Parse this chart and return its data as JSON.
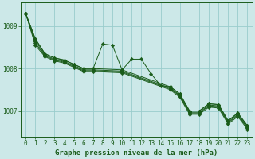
{
  "title": "Graphe pression niveau de la mer (hPa)",
  "bg_color": "#cce8e8",
  "grid_color": "#99cccc",
  "line_color": "#1a5c1a",
  "marker_color": "#1a5c1a",
  "xlim": [
    -0.5,
    23.5
  ],
  "ylim": [
    1006.4,
    1009.55
  ],
  "yticks": [
    1007,
    1008,
    1009
  ],
  "xticks": [
    0,
    1,
    2,
    3,
    4,
    5,
    6,
    7,
    8,
    9,
    10,
    11,
    12,
    13,
    14,
    15,
    16,
    17,
    18,
    19,
    20,
    21,
    22,
    23
  ],
  "fontsize_label": 6.5,
  "fontsize_tick": 5.5,
  "series_straight": [
    {
      "x": [
        0,
        1,
        2,
        3,
        4,
        5,
        6,
        7,
        10,
        15,
        16,
        17,
        18,
        19,
        20,
        21,
        22,
        23
      ],
      "y": [
        1009.3,
        1008.7,
        1008.35,
        1008.25,
        1008.2,
        1008.1,
        1008.0,
        1008.0,
        1007.97,
        1007.57,
        1007.4,
        1007.0,
        1007.0,
        1007.17,
        1007.15,
        1006.77,
        1006.95,
        1006.65
      ]
    },
    {
      "x": [
        0,
        1,
        2,
        3,
        4,
        5,
        6,
        7,
        10,
        15,
        16,
        17,
        18,
        19,
        20,
        21,
        22,
        23
      ],
      "y": [
        1009.3,
        1008.65,
        1008.32,
        1008.22,
        1008.17,
        1008.07,
        1007.97,
        1007.97,
        1007.94,
        1007.54,
        1007.37,
        1006.97,
        1006.97,
        1007.14,
        1007.12,
        1006.74,
        1006.92,
        1006.62
      ]
    },
    {
      "x": [
        0,
        1,
        2,
        3,
        4,
        5,
        6,
        7,
        10,
        15,
        16,
        17,
        18,
        19,
        20,
        21,
        22,
        23
      ],
      "y": [
        1009.3,
        1008.6,
        1008.3,
        1008.2,
        1008.15,
        1008.05,
        1007.95,
        1007.95,
        1007.92,
        1007.52,
        1007.35,
        1006.95,
        1006.95,
        1007.12,
        1007.1,
        1006.72,
        1006.9,
        1006.6
      ]
    },
    {
      "x": [
        0,
        1,
        2,
        3,
        4,
        5,
        6,
        7,
        10,
        15,
        16,
        17,
        18,
        19,
        20,
        21,
        22,
        23
      ],
      "y": [
        1009.3,
        1008.55,
        1008.28,
        1008.18,
        1008.13,
        1008.03,
        1007.93,
        1007.93,
        1007.9,
        1007.5,
        1007.32,
        1006.92,
        1006.92,
        1007.09,
        1007.07,
        1006.69,
        1006.87,
        1006.57
      ]
    }
  ],
  "series_zigzag": {
    "x": [
      0,
      1,
      2,
      3,
      4,
      5,
      6,
      7,
      8,
      9,
      10,
      11,
      12,
      13,
      14,
      15,
      16,
      17,
      18,
      19,
      20,
      21,
      22,
      23
    ],
    "y": [
      1009.3,
      1008.7,
      1008.35,
      1008.25,
      1008.2,
      1008.1,
      1008.0,
      1008.0,
      1008.58,
      1008.55,
      1007.97,
      1008.22,
      1008.22,
      1007.88,
      1007.6,
      1007.57,
      1007.4,
      1007.0,
      1007.0,
      1007.17,
      1007.15,
      1006.77,
      1006.95,
      1006.65
    ]
  }
}
